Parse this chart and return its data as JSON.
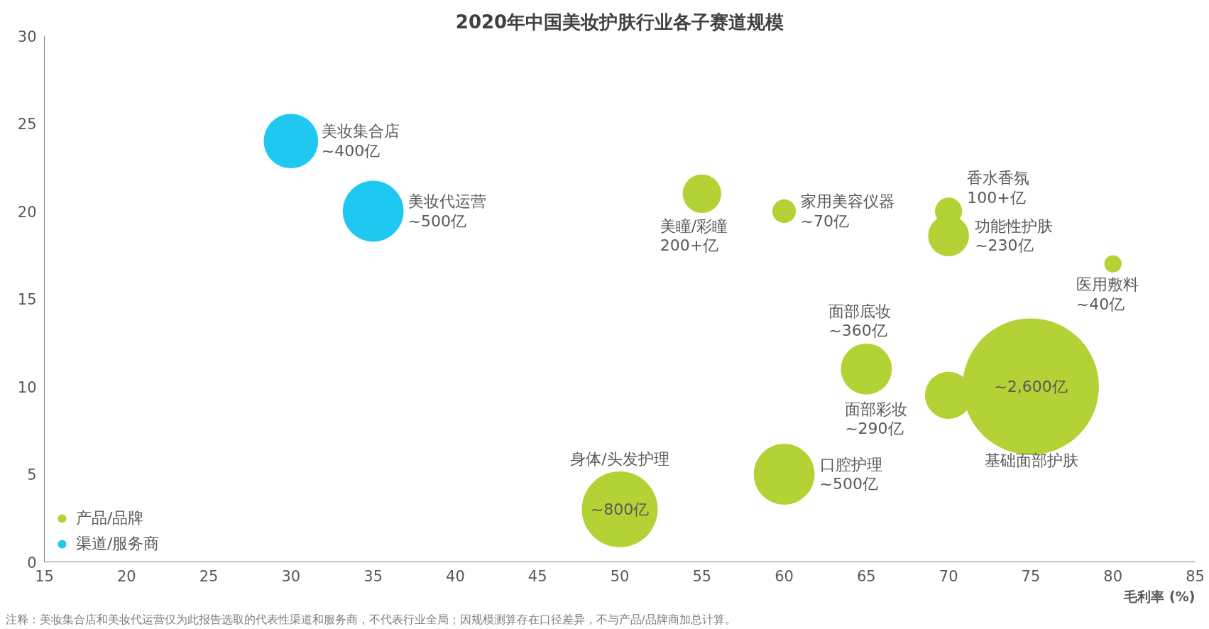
{
  "chart_data": {
    "type": "bubble",
    "title": "2020年中国美妆护肤行业各子赛道规模",
    "xlabel": "毛利率 (%)",
    "xlim": [
      15,
      85
    ],
    "xticks": [
      15,
      20,
      25,
      30,
      35,
      40,
      45,
      50,
      55,
      60,
      65,
      70,
      75,
      80,
      85
    ],
    "ylim": [
      0,
      30
    ],
    "yticks": [
      0,
      5,
      10,
      15,
      20,
      25,
      30
    ],
    "grid": false,
    "legend": "bottom left",
    "series": [
      {
        "name": "产品/品牌",
        "color": "#b2d235",
        "x": [
          55,
          60,
          70,
          70,
          80,
          65,
          70,
          75,
          60,
          50
        ],
        "values": [
          21,
          20,
          20,
          18.6,
          17,
          11,
          9.5,
          10,
          5,
          3
        ],
        "sizes": [
          0.08,
          0.03,
          0.04,
          0.09,
          0.016,
          0.14,
          0.12,
          1,
          0.2,
          0.31
        ]
      },
      {
        "name": "渠道/服务商",
        "color": "#1ec8f0",
        "x": [
          30,
          35
        ],
        "values": [
          24,
          20
        ],
        "sizes": [
          0.16,
          0.2
        ]
      }
    ],
    "annotations": [
      {
        "text": "美妆集合店\n~400亿",
        "x": 30,
        "y": 24
      },
      {
        "text": "美妆代运营\n~500亿",
        "x": 35,
        "y": 20
      },
      {
        "text": "美瞳/彩瞳\n200+亿",
        "x": 55,
        "y": 21
      },
      {
        "text": "家用美容仪器\n~70亿",
        "x": 60,
        "y": 20
      },
      {
        "text": "香水香氛\n100+亿",
        "x": 70,
        "y": 20
      },
      {
        "text": "功能性护肤\n~230亿",
        "x": 70,
        "y": 18.6
      },
      {
        "text": "医用敷料\n~40亿",
        "x": 80,
        "y": 17
      },
      {
        "text": "面部底妆\n~360亿",
        "x": 65,
        "y": 11
      },
      {
        "text": "面部彩妆\n~290亿",
        "x": 70,
        "y": 9.5
      },
      {
        "text": "~2,600亿",
        "x": 75,
        "y": 10
      },
      "基础面部护肤",
      {
        "text": "口腔护理\n~500亿",
        "x": 60,
        "y": 5
      },
      {
        "text": "身体/头发护理",
        "x": 50,
        "y": 3
      },
      {
        "text": "~800亿",
        "x": 50,
        "y": 3
      },
      "注释：美妆集合店和美妆代运营仅为此报告选取的代表性渠道和服务商，不代表行业全局；因规模测算存在口径差异，不与产品/品牌商加总计算。"
    ]
  }
}
